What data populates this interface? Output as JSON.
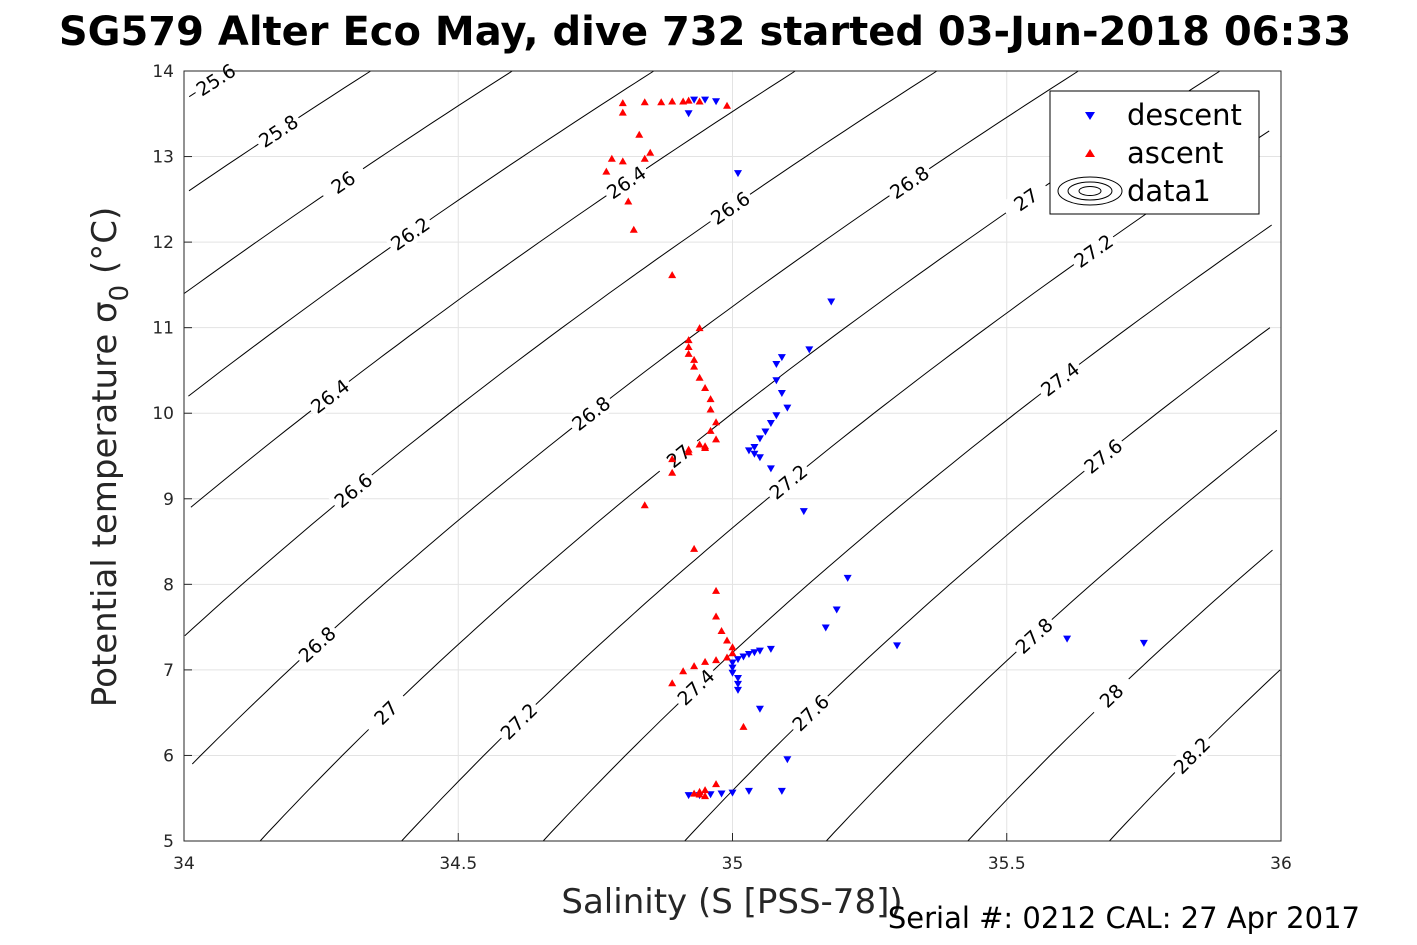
{
  "chart_data": {
    "type": "scatter",
    "title": "SG579 Alter Eco May, dive 732 started 03-Jun-2018 06:33",
    "xlabel": "Salinity (S [PSS-78])",
    "ylabel": "Potential temperature σ₀ (°C)",
    "ylabel_main": "Potential temperature σ",
    "ylabel_sub": "0",
    "ylabel_unit": " (°C)",
    "xlim": [
      34,
      36
    ],
    "ylim": [
      5,
      14
    ],
    "xticks": [
      "34",
      "34.5",
      "35",
      "35.5",
      "36"
    ],
    "yticks": [
      "5",
      "6",
      "7",
      "8",
      "9",
      "10",
      "11",
      "12",
      "13",
      "14"
    ],
    "grid": true,
    "legend_position": "top-right",
    "legend": [
      "descent",
      "ascent",
      "data1"
    ],
    "footer": "Serial #: 0212  CAL: 27 Apr 2017",
    "contour_levels": [
      "25.6",
      "25.8",
      "26",
      "26.2",
      "26.4",
      "26.6",
      "26.8",
      "27",
      "27.2",
      "27.4",
      "27.6",
      "27.8",
      "28",
      "28.2"
    ],
    "series": [
      {
        "name": "descent",
        "marker": "triangle-down",
        "color": "#0000ff",
        "points": [
          [
            34.92,
            13.5
          ],
          [
            34.93,
            13.66
          ],
          [
            34.95,
            13.66
          ],
          [
            34.97,
            13.64
          ],
          [
            35.01,
            12.8
          ],
          [
            35.18,
            11.3
          ],
          [
            35.14,
            10.74
          ],
          [
            35.09,
            10.65
          ],
          [
            35.08,
            10.57
          ],
          [
            35.08,
            10.38
          ],
          [
            35.09,
            10.23
          ],
          [
            35.1,
            10.06
          ],
          [
            35.08,
            9.97
          ],
          [
            35.07,
            9.88
          ],
          [
            35.06,
            9.78
          ],
          [
            35.05,
            9.7
          ],
          [
            35.04,
            9.6
          ],
          [
            35.03,
            9.56
          ],
          [
            35.04,
            9.52
          ],
          [
            35.05,
            9.48
          ],
          [
            35.07,
            9.35
          ],
          [
            35.13,
            8.85
          ],
          [
            35.21,
            8.07
          ],
          [
            35.19,
            7.7
          ],
          [
            35.17,
            7.49
          ],
          [
            35.3,
            7.28
          ],
          [
            35.61,
            7.36
          ],
          [
            35.75,
            7.31
          ],
          [
            35.07,
            7.24
          ],
          [
            35.05,
            7.22
          ],
          [
            35.04,
            7.2
          ],
          [
            35.03,
            7.18
          ],
          [
            35.02,
            7.15
          ],
          [
            35.01,
            7.12
          ],
          [
            35.0,
            7.08
          ],
          [
            35.0,
            7.02
          ],
          [
            35.0,
            6.96
          ],
          [
            35.01,
            6.9
          ],
          [
            35.01,
            6.83
          ],
          [
            35.01,
            6.76
          ],
          [
            35.05,
            6.54
          ],
          [
            35.1,
            5.95
          ],
          [
            35.09,
            5.58
          ],
          [
            35.03,
            5.58
          ],
          [
            35.0,
            5.56
          ],
          [
            34.98,
            5.55
          ],
          [
            34.96,
            5.54
          ],
          [
            34.94,
            5.53
          ],
          [
            34.92,
            5.53
          ]
        ]
      },
      {
        "name": "ascent",
        "marker": "triangle-up",
        "color": "#ff0000",
        "points": [
          [
            34.8,
            13.63
          ],
          [
            34.84,
            13.64
          ],
          [
            34.87,
            13.64
          ],
          [
            34.89,
            13.65
          ],
          [
            34.91,
            13.65
          ],
          [
            34.92,
            13.66
          ],
          [
            34.94,
            13.65
          ],
          [
            34.99,
            13.6
          ],
          [
            34.8,
            13.52
          ],
          [
            34.83,
            13.26
          ],
          [
            34.85,
            13.05
          ],
          [
            34.78,
            12.98
          ],
          [
            34.8,
            12.95
          ],
          [
            34.84,
            12.98
          ],
          [
            34.77,
            12.83
          ],
          [
            34.81,
            12.48
          ],
          [
            34.82,
            12.15
          ],
          [
            34.89,
            11.62
          ],
          [
            34.94,
            11.0
          ],
          [
            34.92,
            10.86
          ],
          [
            34.92,
            10.78
          ],
          [
            34.92,
            10.7
          ],
          [
            34.93,
            10.63
          ],
          [
            34.93,
            10.55
          ],
          [
            34.94,
            10.42
          ],
          [
            34.95,
            10.3
          ],
          [
            34.96,
            10.17
          ],
          [
            34.96,
            10.05
          ],
          [
            34.97,
            9.9
          ],
          [
            34.96,
            9.8
          ],
          [
            34.97,
            9.7
          ],
          [
            34.95,
            9.62
          ],
          [
            34.92,
            9.58
          ],
          [
            34.94,
            9.64
          ],
          [
            34.95,
            9.6
          ],
          [
            34.89,
            9.47
          ],
          [
            34.92,
            9.55
          ],
          [
            34.89,
            9.31
          ],
          [
            34.84,
            8.93
          ],
          [
            34.93,
            8.42
          ],
          [
            34.97,
            7.93
          ],
          [
            34.97,
            7.63
          ],
          [
            34.98,
            7.46
          ],
          [
            34.99,
            7.35
          ],
          [
            35.0,
            7.27
          ],
          [
            35.0,
            7.2
          ],
          [
            34.99,
            7.15
          ],
          [
            34.97,
            7.12
          ],
          [
            34.95,
            7.1
          ],
          [
            34.93,
            7.05
          ],
          [
            34.91,
            6.99
          ],
          [
            34.89,
            6.85
          ],
          [
            35.02,
            6.34
          ],
          [
            34.97,
            5.67
          ],
          [
            34.95,
            5.6
          ],
          [
            34.94,
            5.58
          ],
          [
            34.94,
            5.55
          ],
          [
            34.95,
            5.53
          ],
          [
            34.93,
            5.56
          ]
        ]
      }
    ]
  }
}
